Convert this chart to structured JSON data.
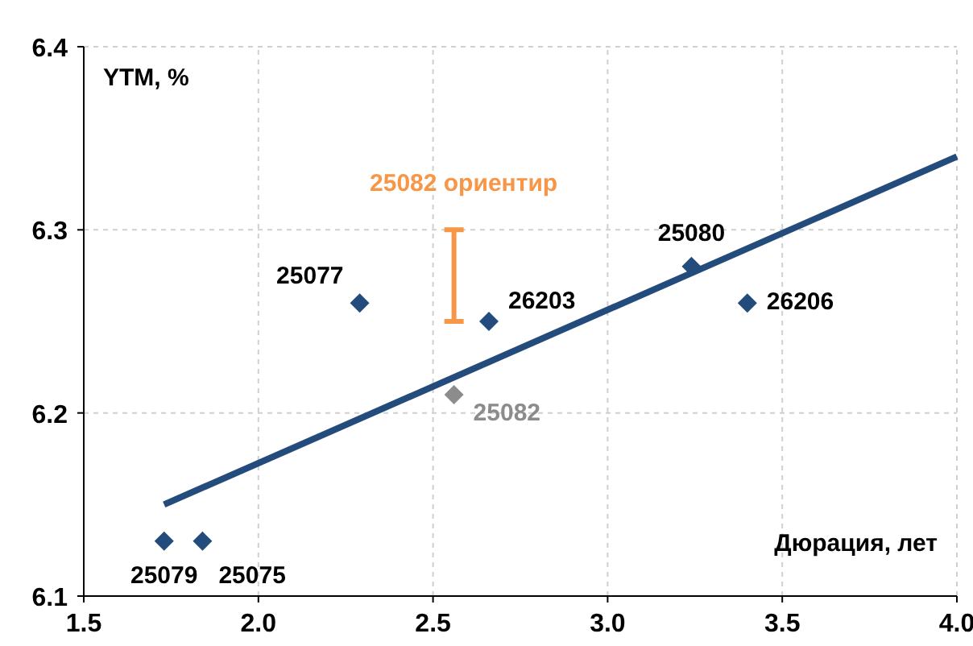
{
  "chart_data": {
    "type": "scatter",
    "xlabel": "Дюрация, лет",
    "ylabel": "YTM, %",
    "xlim": [
      1.5,
      4.0
    ],
    "xticks": [
      {
        "value": 1.5,
        "label": "1.5"
      },
      {
        "value": 2.0,
        "label": "2.0"
      },
      {
        "value": 2.5,
        "label": "2.5"
      },
      {
        "value": 3.0,
        "label": "3.0"
      },
      {
        "value": 3.5,
        "label": "3.5"
      },
      {
        "value": 4.0,
        "label": "4.0"
      }
    ],
    "ylim": [
      6.1,
      6.4
    ],
    "yticks": [
      6.1,
      6.2,
      6.3,
      6.4
    ],
    "grid": true,
    "marker": "diamond",
    "series": [
      {
        "type": "line",
        "color": "#234b7c",
        "x": [
          1.73,
          4.0
        ],
        "values": [
          6.15,
          6.34
        ],
        "marker": "none"
      },
      {
        "color": "#234b7c",
        "x": [
          1.73,
          1.84,
          2.29,
          2.66,
          3.24,
          3.4
        ],
        "values": [
          6.13,
          6.13,
          6.26,
          6.25,
          6.28,
          6.26
        ]
      },
      {
        "name": "25082",
        "color": "#8c8c8c",
        "x": [
          2.56
        ],
        "values": [
          6.21
        ]
      },
      {
        "name": "25082 ориентир",
        "type": "line",
        "color": "#f79646",
        "x": [
          2.56,
          2.56
        ],
        "values": [
          6.25,
          6.3
        ],
        "marker": "none"
      }
    ],
    "annotations": [
      {
        "text": "25079",
        "x": 1.73,
        "y": 6.13
      },
      {
        "text": "25075",
        "x": 1.84,
        "y": 6.13
      },
      {
        "text": "25077",
        "x": 2.29,
        "y": 6.26
      },
      {
        "text": "26203",
        "x": 2.66,
        "y": 6.25
      },
      {
        "text": "25080",
        "x": 3.24,
        "y": 6.28
      },
      {
        "text": "26206",
        "x": 3.4,
        "y": 6.26
      }
    ]
  }
}
